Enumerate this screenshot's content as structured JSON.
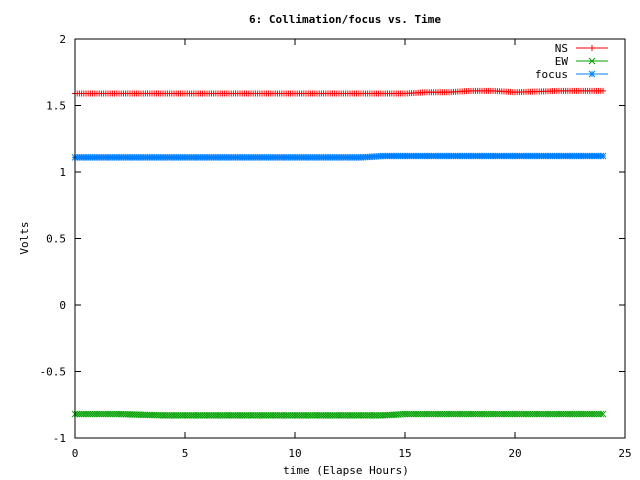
{
  "chart_data": {
    "type": "scatter",
    "title": "6: Collimation/focus vs. Time",
    "xlabel": "time (Elapse Hours)",
    "ylabel": "Volts",
    "xlim": [
      0,
      25
    ],
    "ylim": [
      -1,
      2
    ],
    "xticks": [
      0,
      5,
      10,
      15,
      20,
      25
    ],
    "xtick_labels": [
      "0",
      "5",
      "10",
      "15",
      "20",
      "25"
    ],
    "yticks": [
      -1,
      -0.5,
      0,
      0.5,
      1,
      1.5,
      2
    ],
    "ytick_labels": [
      "-1",
      "-0.5",
      "0",
      "0.5",
      "1",
      "1.5",
      "2"
    ],
    "grid": false,
    "legend_position": "top-right",
    "series": [
      {
        "name": "NS",
        "color": "#ff0000",
        "marker": "plus",
        "x": [
          0,
          2,
          4,
          6,
          8,
          10,
          12,
          14,
          15,
          16,
          17,
          18,
          19,
          20,
          22,
          24
        ],
        "values": [
          1.59,
          1.59,
          1.59,
          1.59,
          1.59,
          1.59,
          1.59,
          1.59,
          1.59,
          1.6,
          1.6,
          1.61,
          1.61,
          1.6,
          1.61,
          1.61
        ]
      },
      {
        "name": "EW",
        "color": "#00a000",
        "marker": "cross",
        "x": [
          0,
          2,
          4,
          6,
          8,
          10,
          12,
          14,
          15,
          16,
          18,
          20,
          22,
          24
        ],
        "values": [
          -0.82,
          -0.82,
          -0.83,
          -0.83,
          -0.83,
          -0.83,
          -0.83,
          -0.83,
          -0.82,
          -0.82,
          -0.82,
          -0.82,
          -0.82,
          -0.82
        ]
      },
      {
        "name": "focus",
        "color": "#0080ff",
        "marker": "star",
        "x": [
          0,
          2,
          4,
          6,
          8,
          10,
          12,
          13,
          14,
          15,
          16,
          18,
          20,
          22,
          24
        ],
        "values": [
          1.11,
          1.11,
          1.11,
          1.11,
          1.11,
          1.11,
          1.11,
          1.11,
          1.12,
          1.12,
          1.12,
          1.12,
          1.12,
          1.12,
          1.12
        ]
      }
    ]
  }
}
